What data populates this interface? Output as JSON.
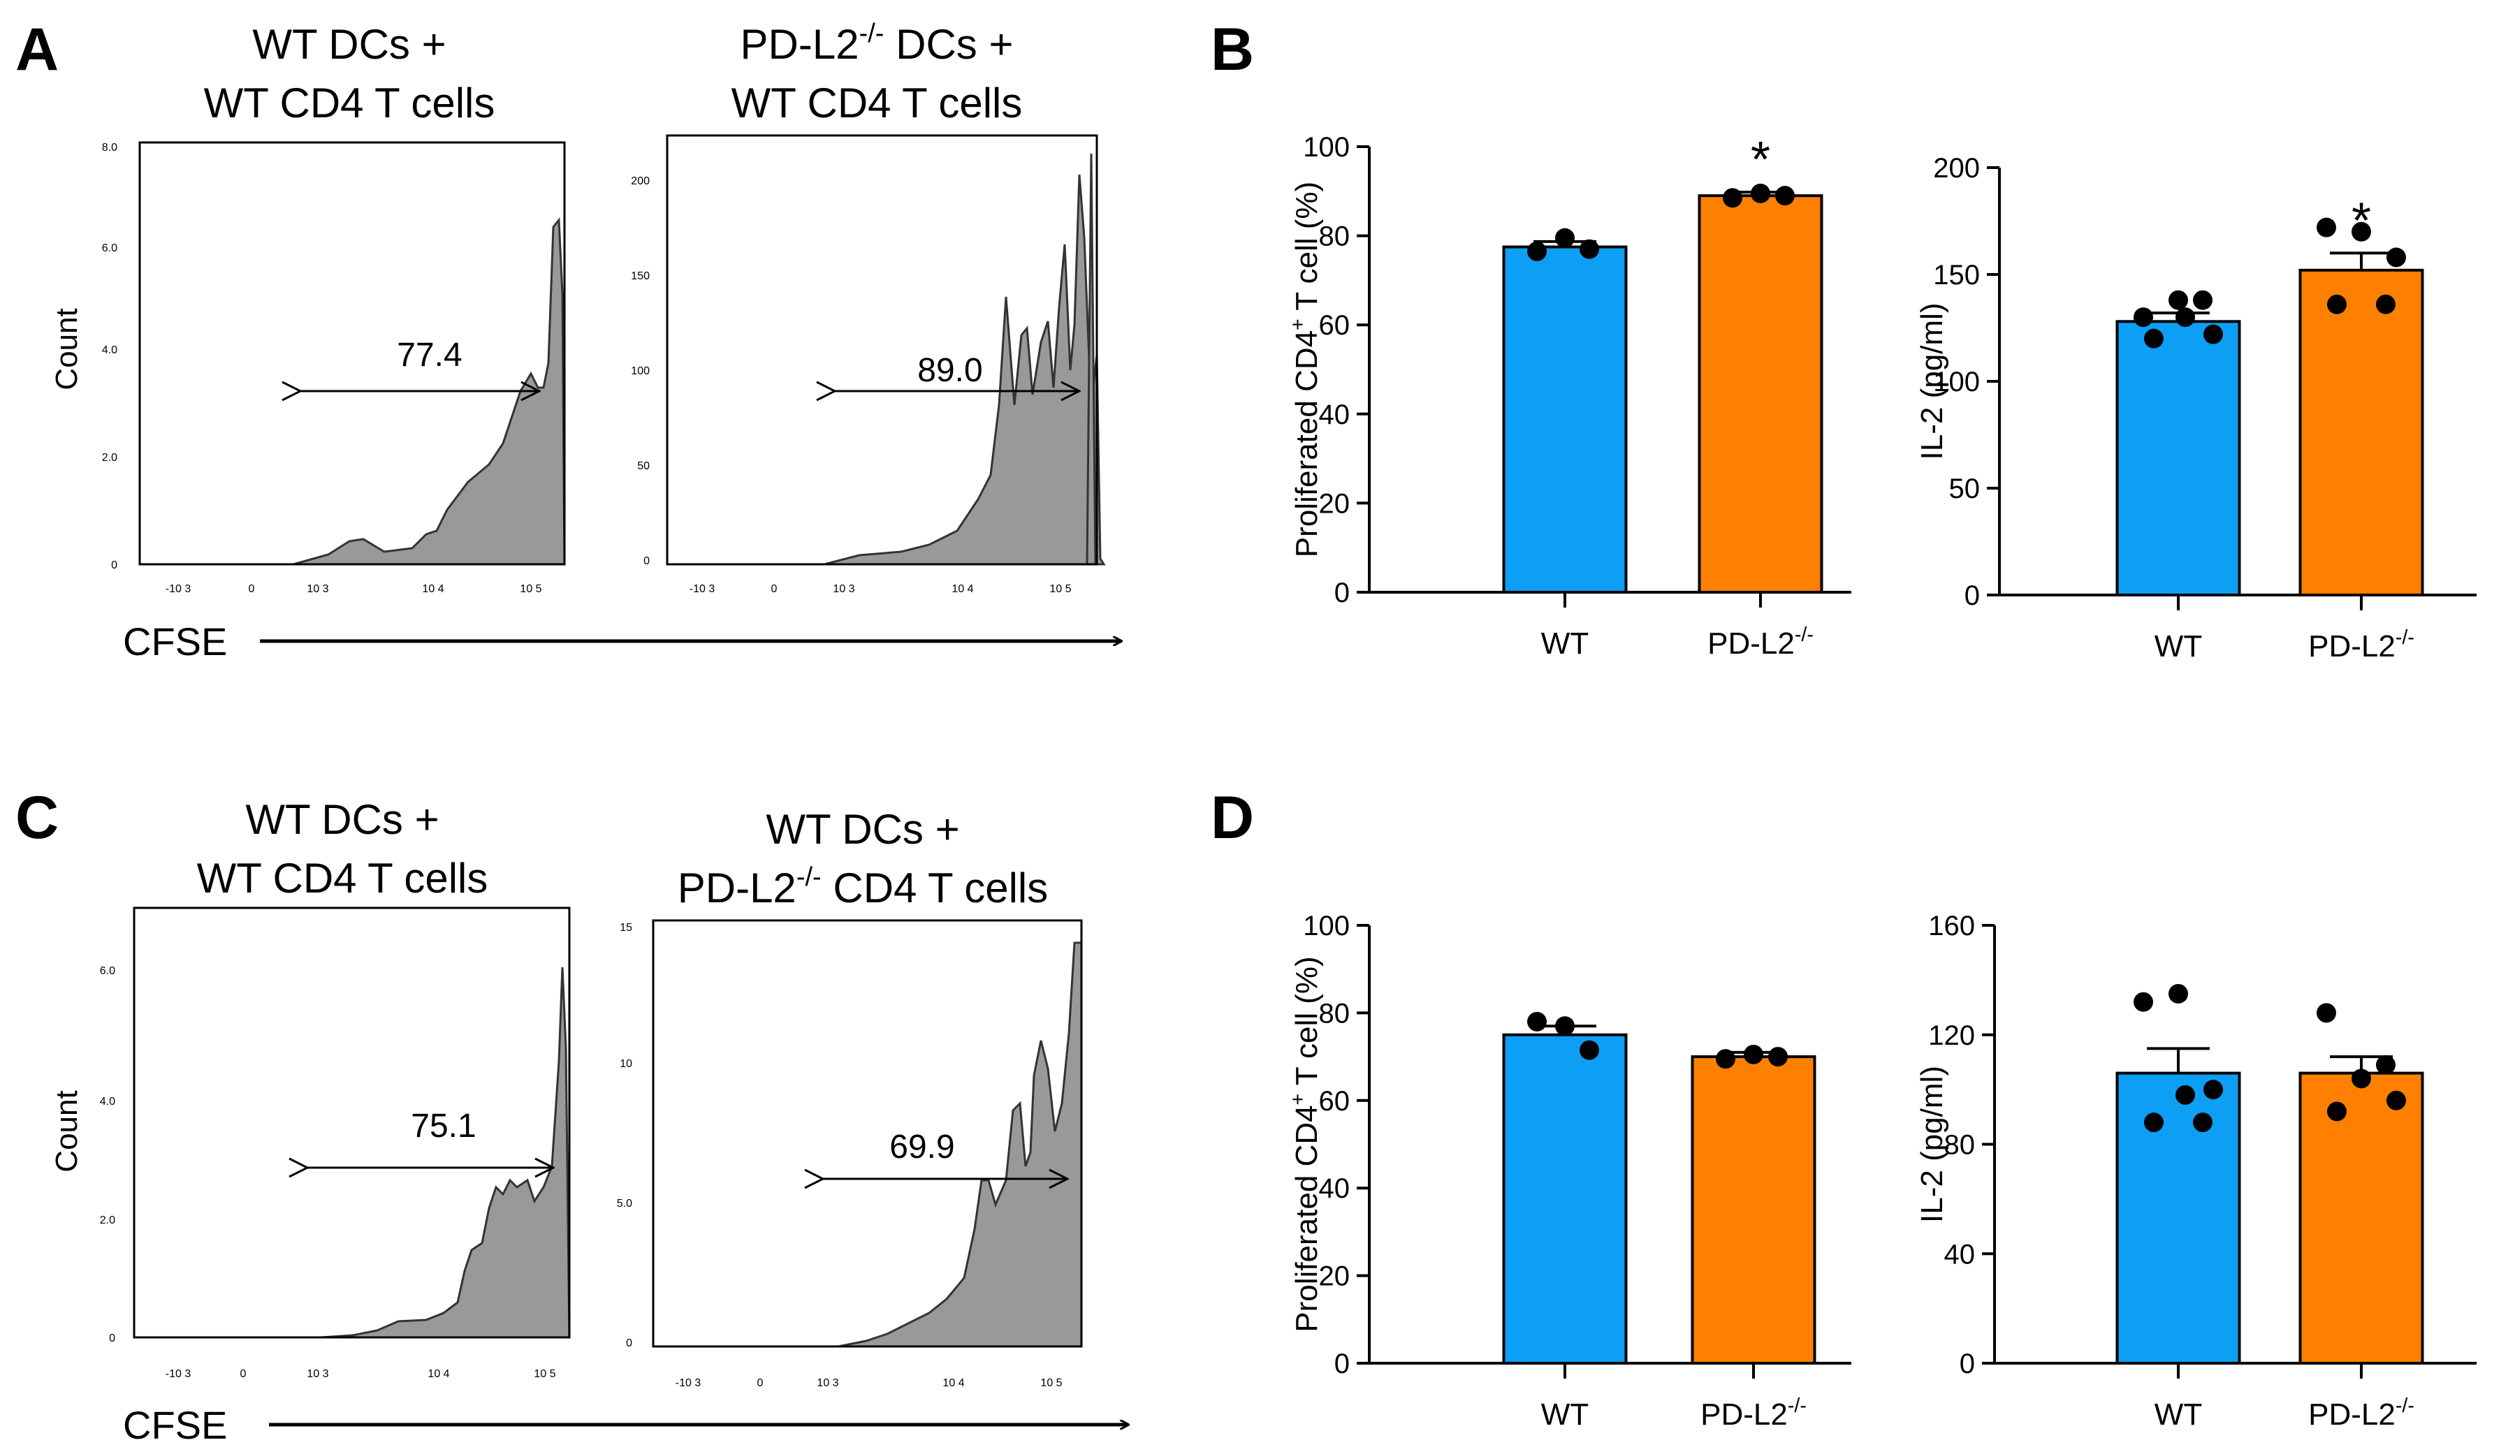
{
  "colors": {
    "wt": "#0d9ff5",
    "ko": "#ff8000",
    "hist_fill": "#999999"
  },
  "panels": {
    "A": {
      "letter": "A",
      "x_axis_label": "CFSE",
      "plots": [
        {
          "title_lines": [
            "WT DCs +",
            "WT CD4 T cells"
          ],
          "ylabel": "Count",
          "y_ticks": [
            "0",
            "2.0",
            "4.0",
            "6.0",
            "8.0"
          ],
          "x_ticks": [
            "-10 3",
            "0",
            "10 3",
            "10 4",
            "10 5"
          ],
          "gate_value": "77.4"
        },
        {
          "title_lines": [
            "PD-L2-/- DCs +",
            "WT CD4 T cells"
          ],
          "ylabel": "",
          "y_ticks": [
            "0",
            "50",
            "100",
            "150",
            "200"
          ],
          "x_ticks": [
            "-10 3",
            "0",
            "10 3",
            "10 4",
            "10 5"
          ],
          "gate_value": "89.0"
        }
      ]
    },
    "C": {
      "letter": "C",
      "x_axis_label": "CFSE",
      "plots": [
        {
          "title_lines": [
            "WT DCs +",
            "WT CD4 T cells"
          ],
          "ylabel": "Count",
          "y_ticks": [
            "0",
            "2.0",
            "4.0",
            "6.0"
          ],
          "x_ticks": [
            "-10 3",
            "0",
            "10 3",
            "10 4",
            "10 5"
          ],
          "gate_value": "75.1"
        },
        {
          "title_lines": [
            "WT DCs +",
            "PD-L2-/- CD4 T cells"
          ],
          "ylabel": "",
          "y_ticks": [
            "0",
            "5.0",
            "10",
            "15"
          ],
          "x_ticks": [
            "-10 3",
            "0",
            "10 3",
            "10 4",
            "10 5"
          ],
          "gate_value": "69.9"
        }
      ]
    },
    "B": {
      "letter": "B"
    },
    "D": {
      "letter": "D"
    }
  },
  "chart_data": [
    {
      "id": "B-left",
      "type": "bar",
      "categories": [
        "WT",
        "PD-L2-/-"
      ],
      "values": [
        77.5,
        89.0
      ],
      "errors": [
        1.2,
        0.8
      ],
      "points": [
        [
          76.5,
          79.5,
          77.0
        ],
        [
          88.5,
          89.5,
          89.0
        ]
      ],
      "significance": [
        "",
        "*"
      ],
      "ylabel": "Proliferated CD4+ T cell (%)",
      "ylim": [
        0,
        100
      ],
      "yticks": [
        0,
        20,
        40,
        60,
        80,
        100
      ]
    },
    {
      "id": "B-right",
      "type": "bar",
      "categories": [
        "WT",
        "PD-L2-/-"
      ],
      "values": [
        128,
        152
      ],
      "errors": [
        4,
        8
      ],
      "points": [
        [
          130,
          138,
          122,
          120,
          138,
          130
        ],
        [
          172,
          170,
          158,
          136,
          136
        ]
      ],
      "significance": [
        "",
        "*"
      ],
      "ylabel": "IL-2 (pg/ml)",
      "ylim": [
        0,
        200
      ],
      "yticks": [
        0,
        50,
        100,
        150,
        200
      ]
    },
    {
      "id": "D-left",
      "type": "bar",
      "categories": [
        "WT",
        "PD-L2-/-"
      ],
      "values": [
        75,
        70
      ],
      "errors": [
        2,
        1
      ],
      "points": [
        [
          78,
          77,
          71.5
        ],
        [
          69.5,
          70.5,
          70.0
        ]
      ],
      "significance": [
        "",
        ""
      ],
      "ylabel": "Proliferated CD4+ T cell (%)",
      "ylim": [
        0,
        100
      ],
      "yticks": [
        0,
        20,
        40,
        60,
        80,
        100
      ]
    },
    {
      "id": "D-right",
      "type": "bar",
      "categories": [
        "WT",
        "PD-L2-/-"
      ],
      "values": [
        106,
        106
      ],
      "errors": [
        9,
        6
      ],
      "points": [
        [
          132,
          135,
          100,
          88,
          88,
          98
        ],
        [
          128,
          104,
          96,
          92,
          109
        ]
      ],
      "significance": [
        "",
        ""
      ],
      "ylabel": "IL-2 (pg/ml)",
      "ylim": [
        0,
        160
      ],
      "yticks": [
        0,
        40,
        80,
        120,
        160
      ]
    }
  ]
}
